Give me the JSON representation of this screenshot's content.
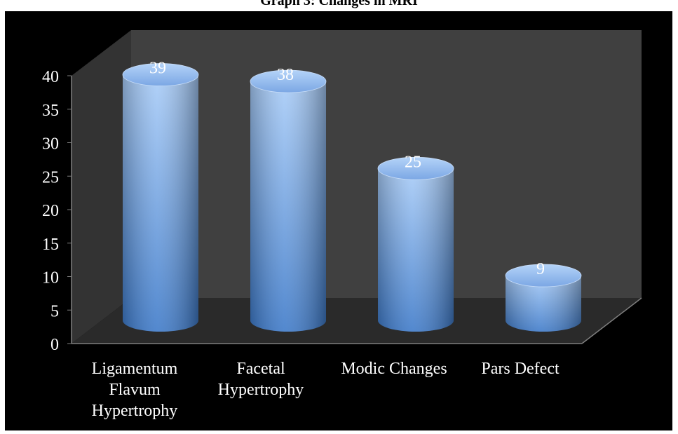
{
  "chart_data": {
    "type": "bar",
    "title": "Graph 3: Changes in MRI",
    "categories": [
      [
        "Ligamentum",
        "Flavum",
        "Hypertrophy"
      ],
      [
        "Facetal",
        "Hypertrophy"
      ],
      [
        "Modic Changes"
      ],
      [
        "Pars Defect"
      ]
    ],
    "values": [
      39,
      38,
      25,
      9
    ],
    "ylim": [
      0,
      40
    ],
    "yticks": [
      "0",
      "5",
      "10",
      "15",
      "20",
      "25",
      "30",
      "35",
      "40"
    ],
    "grid": false,
    "legend": "none",
    "style": "3d-cylinder",
    "colors": {
      "background": "#000000",
      "back_wall": "#404040",
      "floor": "#2a2a2a",
      "bar_top": "#a8ccf8",
      "bar_bottom": "#3b78c8",
      "text": "#ffffff"
    }
  }
}
